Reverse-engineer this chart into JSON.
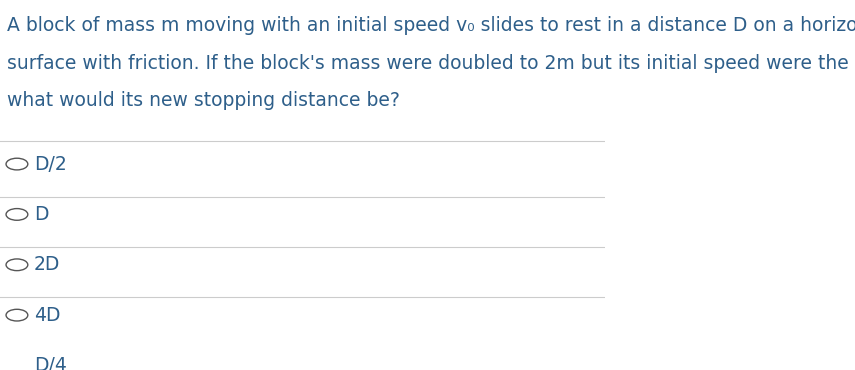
{
  "background_color": "#ffffff",
  "question_lines": [
    "A block of mass m moving with an initial speed v₀ slides to rest in a distance D on a horizontal",
    "surface with friction. If the block's mass were doubled to 2m but its initial speed were the same,",
    "what would its new stopping distance be?"
  ],
  "options": [
    "D/2",
    "D",
    "2D",
    "4D",
    "D/4"
  ],
  "text_color": "#2e5f8a",
  "line_color": "#cccccc",
  "circle_color": "#555555",
  "font_size_question": 13.5,
  "font_size_options": 13.5
}
